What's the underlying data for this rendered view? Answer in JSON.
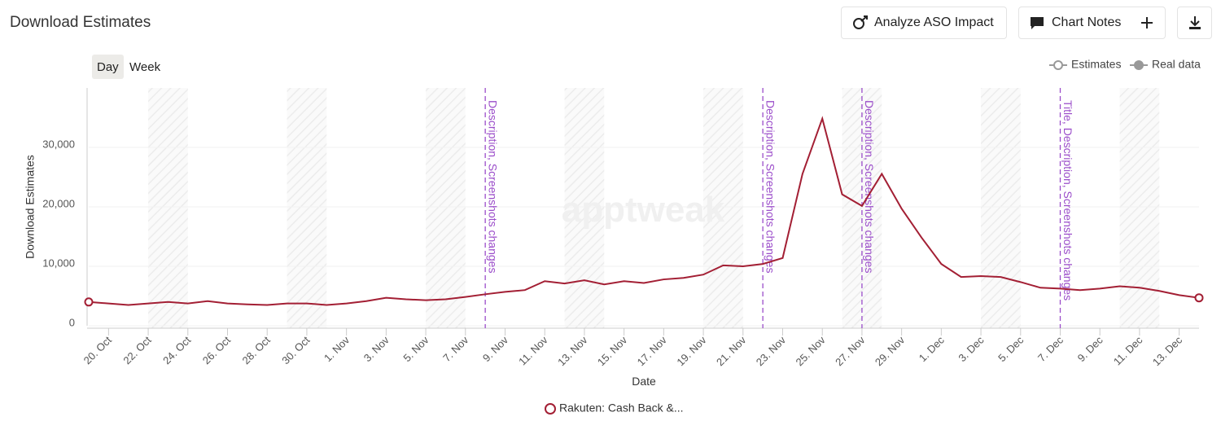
{
  "header": {
    "title": "Download Estimates",
    "buttons": [
      "Analyze ASO Impact",
      "Chart Notes"
    ],
    "views": [
      "Day",
      "Week"
    ],
    "legend": [
      "Estimates",
      "Real data"
    ],
    "watermark": "apptweak"
  },
  "chart_data": {
    "type": "line",
    "x_label": "Date",
    "y_label": "Download Estimates",
    "categories": [
      null,
      "20. Oct",
      null,
      "22. Oct",
      null,
      "24. Oct",
      null,
      "26. Oct",
      null,
      "28. Oct",
      null,
      "30. Oct",
      null,
      "1. Nov",
      null,
      "3. Nov",
      null,
      "5. Nov",
      null,
      "7. Nov",
      null,
      "9. Nov",
      null,
      "11. Nov",
      null,
      "13. Nov",
      null,
      "15. Nov",
      null,
      "17. Nov",
      null,
      "19. Nov",
      null,
      "21. Nov",
      null,
      "23. Nov",
      null,
      "25. Nov",
      null,
      "27. Nov",
      null,
      "29. Nov",
      null,
      "1. Dec",
      null,
      "3. Dec",
      null,
      "5. Dec",
      null,
      "7. Dec",
      null,
      "9. Dec",
      null,
      "11. Dec",
      null,
      "13. Dec",
      null
    ],
    "series": [
      {
        "name": "Rakuten: Cash Back &...",
        "color": "#a31f34",
        "values": [
          4000,
          3750,
          3500,
          3750,
          4000,
          3750,
          4150,
          3750,
          3600,
          3500,
          3750,
          3750,
          3500,
          3750,
          4150,
          4700,
          4450,
          4300,
          4450,
          4850,
          5300,
          5700,
          6000,
          7500,
          7100,
          7650,
          6950,
          7500,
          7200,
          7800,
          8050,
          8600,
          10150,
          10000,
          10400,
          11400,
          25550,
          34850,
          22100,
          20150,
          25550,
          19700,
          14850,
          10400,
          8200,
          8350,
          8200,
          7350,
          6400,
          6250,
          6000,
          6250,
          6650,
          6400,
          5850,
          5150,
          4700
        ]
      }
    ],
    "ylim": [
      0,
      40000
    ],
    "yticks": [
      0,
      {
        "value": 10000,
        "label": "10,000"
      },
      {
        "value": 20000,
        "label": "20,000"
      },
      {
        "value": 30000,
        "label": "30,000"
      }
    ],
    "grid": true,
    "annotations": [
      {
        "category_index": 20,
        "text": "Description, Screenshots changes"
      },
      {
        "category_index": 34,
        "text": "Description, Screenshots changes"
      },
      {
        "category_index": 39,
        "text": "Description, Screenshots changes"
      },
      {
        "category_index": 49,
        "text": "Title, Description, Screenshots changes"
      }
    ],
    "annotation_color": "#9b4dca"
  }
}
